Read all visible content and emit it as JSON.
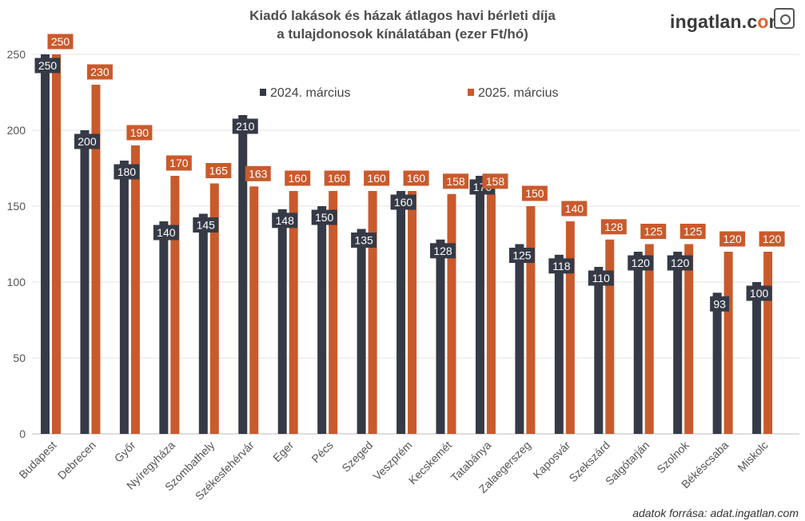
{
  "header": {
    "title_line1": "Kiadó lakások és házak átlagos havi bérleti díja",
    "title_line2": "a tulajdonosok kínálatában (ezer Ft/hó)",
    "logo_main": "ingatlan.c",
    "logo_accent": "o",
    "logo_tail": "m",
    "source": "adatok forrása: adat.ingatlan.com"
  },
  "colors": {
    "series_2024": "#353a46",
    "series_2025": "#c95a2c",
    "grid": "#e3e3e3"
  },
  "chart_data": {
    "type": "bar",
    "title": "Kiadó lakások és házak átlagos havi bérleti díja a tulajdonosok kínálatában (ezer Ft/hó)",
    "categories": [
      "Budapest",
      "Debrecen",
      "Győr",
      "Nyíregyháza",
      "Szombathely",
      "Székesfehérvár",
      "Eger",
      "Pécs",
      "Szeged",
      "Veszprém",
      "Kecskemét",
      "Tatabánya",
      "Zalaegerszeg",
      "Kaposvár",
      "Szekszárd",
      "Salgótarján",
      "Szolnok",
      "Békéscsaba",
      "Miskolc"
    ],
    "series": [
      {
        "name": "2024. március",
        "values": [
          250,
          200,
          180,
          140,
          145,
          210,
          148,
          150,
          135,
          160,
          128,
          170,
          125,
          118,
          110,
          120,
          120,
          93,
          100
        ]
      },
      {
        "name": "2025. március",
        "values": [
          250,
          230,
          190,
          170,
          165,
          163,
          160,
          160,
          160,
          160,
          158,
          158,
          150,
          140,
          128,
          125,
          125,
          120,
          120
        ]
      }
    ],
    "yticks": [
      0,
      50,
      100,
      150,
      200,
      250
    ],
    "ylim": [
      0,
      250
    ],
    "grid": true,
    "legend": "top-center"
  }
}
